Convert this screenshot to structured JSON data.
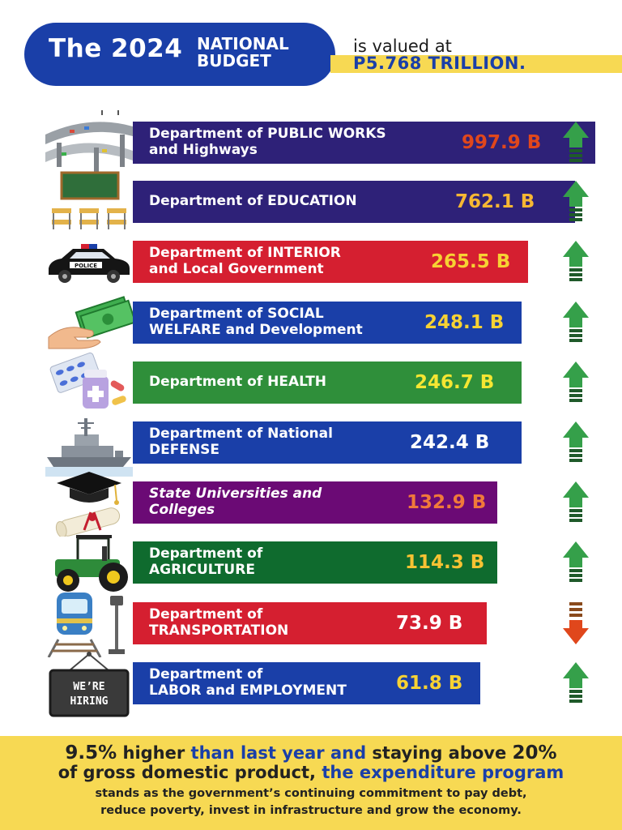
{
  "header": {
    "title_main": "The 2024",
    "title_line1": "NATIONAL",
    "title_line2": "BUDGET",
    "valued_text": "is valued at",
    "total": "P5.768 TRILLION."
  },
  "colors": {
    "navy": "#2e2178",
    "red": "#d51f30",
    "blue": "#1a3fa8",
    "green": "#2f8f3a",
    "purple": "#6b0a75",
    "dark_green": "#0f6b2e",
    "yellow_accent": "#f7d953",
    "arrow_up": "#2e8b3a",
    "arrow_down": "#e0471c"
  },
  "chart_data": {
    "type": "bar",
    "unit": "B",
    "categories": [
      "Department of PUBLIC WORKS and Highways",
      "Department of EDUCATION",
      "Department of INTERIOR and Local Government",
      "Department of SOCIAL WELFARE and Development",
      "Department of HEALTH",
      "Department of National DEFENSE",
      "State Universities and Colleges",
      "Department of AGRICULTURE",
      "Department of TRANSPORTATION",
      "Department of LABOR and EMPLOYMENT"
    ],
    "values": [
      997.9,
      762.1,
      265.5,
      248.1,
      246.7,
      242.4,
      132.9,
      114.3,
      73.9,
      61.8
    ],
    "trend": [
      "up",
      "up",
      "up",
      "up",
      "up",
      "up",
      "up",
      "up",
      "down",
      "up"
    ]
  },
  "rows": [
    {
      "line1": "Department of PUBLIC WORKS",
      "line2": "and Highways",
      "value": "997.9 B",
      "icon": "highway-icon",
      "bar_color": "#2e2178",
      "value_color": "#e0471c",
      "trend": "up"
    },
    {
      "line1": "Department of EDUCATION",
      "line2": "",
      "value": "762.1 B",
      "icon": "classroom-icon",
      "bar_color": "#2e2178",
      "value_color": "#f7b733",
      "trend": "up"
    },
    {
      "line1": "Department of INTERIOR",
      "line2": "and Local Government",
      "value": "265.5 B",
      "icon": "police-car-icon",
      "bar_color": "#d51f30",
      "value_color": "#f7d233",
      "trend": "up"
    },
    {
      "line1": "Department of SOCIAL",
      "line2": "WELFARE and Development",
      "value": "248.1 B",
      "icon": "cash-hand-icon",
      "bar_color": "#1a3fa8",
      "value_color": "#f7d233",
      "trend": "up"
    },
    {
      "line1": "Department of HEALTH",
      "line2": "",
      "value": "246.7 B",
      "icon": "medicine-icon",
      "bar_color": "#2f8f3a",
      "value_color": "#f5e632",
      "trend": "up"
    },
    {
      "line1": "Department of National",
      "line2": "DEFENSE",
      "value": "242.4 B",
      "icon": "warship-icon",
      "bar_color": "#1a3fa8",
      "value_color": "#ffffff",
      "trend": "up"
    },
    {
      "line1": "State Universities and",
      "line2": "Colleges",
      "value": "132.9 B",
      "icon": "graduation-icon",
      "bar_color": "#6b0a75",
      "value_color": "#f07a3a",
      "trend": "up",
      "italic": true
    },
    {
      "line1": "Department of",
      "line2": "AGRICULTURE",
      "value": "114.3 B",
      "icon": "tractor-icon",
      "bar_color": "#0f6b2e",
      "value_color": "#f7c233",
      "trend": "up"
    },
    {
      "line1": "Department of",
      "line2": "TRANSPORTATION",
      "value": "73.9 B",
      "icon": "train-icon",
      "bar_color": "#d51f30",
      "value_color": "#ffffff",
      "trend": "down"
    },
    {
      "line1": "Department of",
      "line2": "LABOR and EMPLOYMENT",
      "value": "61.8 B",
      "icon": "hiring-sign-icon",
      "bar_color": "#1a3fa8",
      "value_color": "#f7d233",
      "trend": "up"
    }
  ],
  "footer": {
    "pct1": "9.5%",
    "t1": " higher ",
    "t2": "than last year and",
    "t3": " staying above ",
    "pct2": "20%",
    "t4": "of gross domestic product, ",
    "t5": "the expenditure program",
    "line3": "stands as the government’s continuing commitment to pay debt,",
    "line4": "reduce poverty, invest in infrastructure and grow the economy."
  }
}
